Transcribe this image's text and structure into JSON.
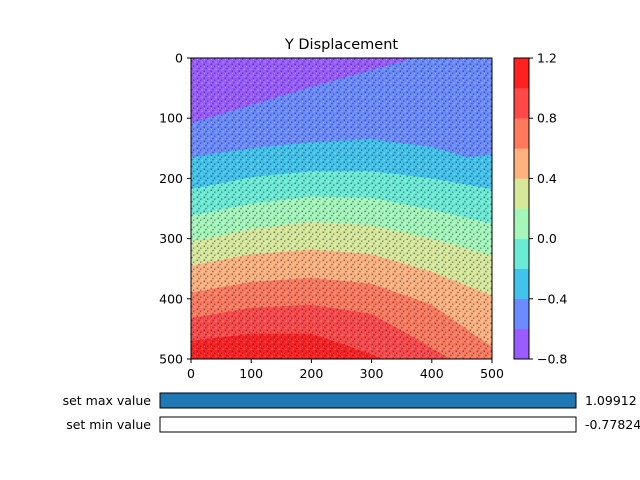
{
  "chart_data": {
    "type": "heatmap",
    "title": "Y Displacement",
    "xlabel": "",
    "ylabel": "",
    "x_ticks": [
      "0",
      "100",
      "200",
      "300",
      "400",
      "500"
    ],
    "y_ticks": [
      "0",
      "100",
      "200",
      "300",
      "400",
      "500"
    ],
    "xlim": [
      0,
      500
    ],
    "ylim": [
      0,
      500
    ],
    "y_inverted": true,
    "grid": false,
    "colorbar": {
      "ticks": [
        "1.2",
        "0.8",
        "0.4",
        "0.0",
        "−0.4",
        "−0.8"
      ],
      "range": [
        -0.8,
        1.2
      ],
      "levels": [
        -0.8,
        -0.6,
        -0.4,
        -0.2,
        0.0,
        0.2,
        0.4,
        0.6,
        0.8,
        1.0,
        1.2
      ],
      "colors": [
        "#9b5cff",
        "#6b8bff",
        "#42c3eb",
        "#6cebd4",
        "#a4f7b8",
        "#d8e89a",
        "#ffb27e",
        "#ff7a5c",
        "#ff4848",
        "#ff2020"
      ]
    },
    "contour_boundaries": [
      {
        "level": -0.6,
        "x": [
          0,
          100,
          200,
          300,
          370
        ],
        "y": [
          108,
          78,
          48,
          20,
          0
        ]
      },
      {
        "level": -0.4,
        "x": [
          0,
          100,
          200,
          300,
          400,
          460,
          500
        ],
        "y": [
          165,
          150,
          140,
          135,
          148,
          165,
          160
        ]
      },
      {
        "level": -0.2,
        "x": [
          0,
          100,
          200,
          300,
          400,
          500
        ],
        "y": [
          218,
          198,
          188,
          188,
          200,
          218
        ]
      },
      {
        "level": 0.0,
        "x": [
          0,
          100,
          200,
          300,
          400,
          500
        ],
        "y": [
          262,
          242,
          230,
          232,
          252,
          275
        ]
      },
      {
        "level": 0.2,
        "x": [
          0,
          100,
          200,
          300,
          400,
          500
        ],
        "y": [
          305,
          284,
          272,
          278,
          300,
          328
        ]
      },
      {
        "level": 0.4,
        "x": [
          0,
          100,
          200,
          300,
          400,
          500
        ],
        "y": [
          345,
          326,
          318,
          326,
          355,
          395
        ]
      },
      {
        "level": 0.6,
        "x": [
          0,
          100,
          200,
          300,
          400,
          450,
          500
        ],
        "y": [
          390,
          372,
          365,
          375,
          410,
          445,
          480
        ]
      },
      {
        "level": 0.8,
        "x": [
          0,
          100,
          200,
          300,
          380,
          430
        ],
        "y": [
          432,
          415,
          410,
          425,
          470,
          500
        ]
      },
      {
        "level": 1.0,
        "x": [
          0,
          100,
          200,
          260,
          320
        ],
        "y": [
          470,
          458,
          458,
          478,
          500
        ]
      }
    ]
  },
  "controls": {
    "max_label": "set max value",
    "max_value": "1.09912",
    "max_fraction": 1.0,
    "min_label": "set min value",
    "min_value": "-0.77824",
    "min_fraction": 0.0
  },
  "colors": {
    "slider_fill": "#1f77b4",
    "speckle": "#2b3a55"
  }
}
